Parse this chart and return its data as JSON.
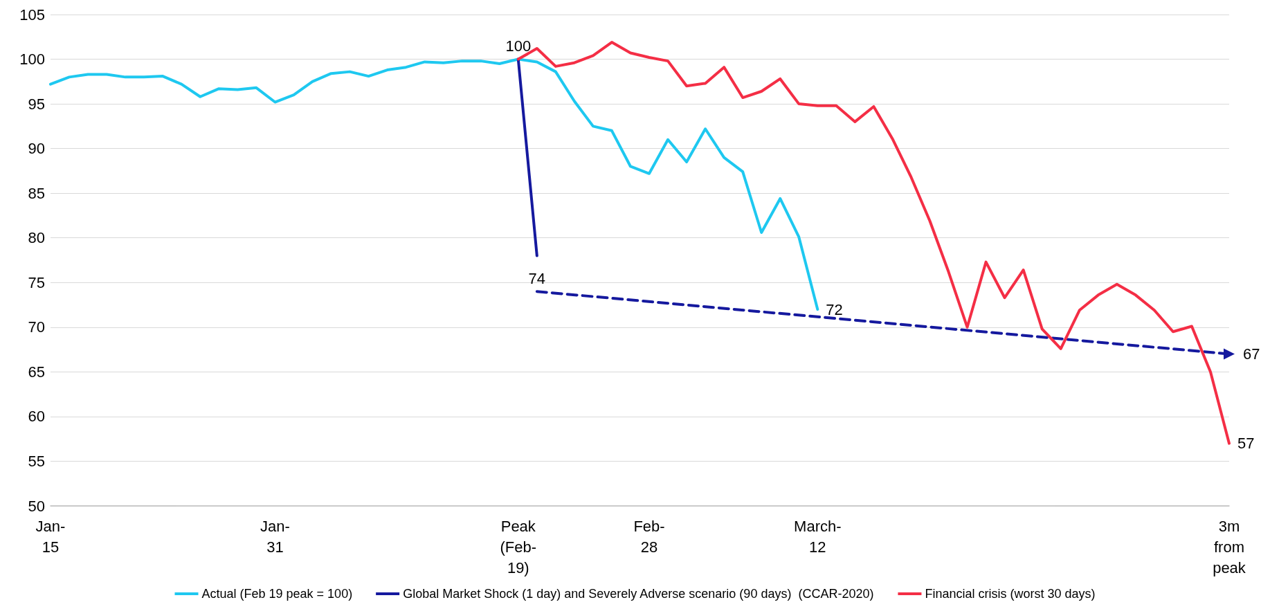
{
  "chart_data": {
    "type": "line",
    "categories": [
      "Jan-15",
      null,
      null,
      null,
      null,
      null,
      null,
      null,
      null,
      null,
      null,
      null,
      "Jan-31",
      null,
      null,
      null,
      null,
      null,
      null,
      null,
      null,
      null,
      null,
      null,
      null,
      "Peak (Feb-19)",
      null,
      null,
      null,
      null,
      null,
      null,
      "Feb-28",
      null,
      null,
      null,
      null,
      null,
      null,
      null,
      null,
      "March-12",
      null,
      null,
      null,
      null,
      null,
      null,
      null,
      null,
      null,
      null,
      null,
      null,
      null,
      null,
      null,
      null,
      null,
      null,
      null,
      null,
      null,
      "3m from peak"
    ],
    "series": [
      {
        "name": "Actual (Feb 19 peak = 100)",
        "color": "#1ec8f0",
        "values": [
          97.2,
          98.0,
          98.3,
          98.3,
          98.0,
          98.0,
          98.1,
          97.2,
          95.8,
          96.7,
          96.6,
          96.8,
          95.2,
          96.0,
          97.5,
          98.4,
          98.6,
          98.1,
          98.8,
          99.1,
          99.7,
          99.6,
          99.8,
          99.8,
          99.5,
          100,
          99.7,
          98.6,
          95.3,
          92.5,
          92.0,
          88.0,
          87.2,
          91.0,
          88.5,
          92.2,
          89.0,
          87.4,
          80.6,
          84.4,
          80.1,
          72,
          null,
          null,
          null,
          null,
          null,
          null,
          null,
          null,
          null,
          null,
          null,
          null,
          null,
          null,
          null,
          null,
          null,
          null,
          null,
          null,
          null,
          null
        ],
        "value_labels": [
          null,
          null,
          null,
          null,
          null,
          null,
          null,
          null,
          null,
          null,
          null,
          null,
          null,
          null,
          null,
          null,
          null,
          null,
          null,
          null,
          null,
          null,
          null,
          null,
          null,
          "100",
          null,
          null,
          null,
          null,
          null,
          null,
          null,
          null,
          null,
          null,
          null,
          null,
          null,
          null,
          null,
          "72",
          null,
          null,
          null,
          null,
          null,
          null,
          null,
          null,
          null,
          null,
          null,
          null,
          null,
          null,
          null,
          null,
          null,
          null,
          null,
          null,
          null,
          null
        ]
      },
      {
        "name": "Global Market Shock (1 day) and Severely Adverse scenario (90 days)  (CCAR-2020)",
        "color": "#15199e",
        "values": [
          null,
          null,
          null,
          null,
          null,
          null,
          null,
          null,
          null,
          null,
          null,
          null,
          null,
          null,
          null,
          null,
          null,
          null,
          null,
          null,
          null,
          null,
          null,
          null,
          null,
          100,
          78,
          null,
          null,
          null,
          null,
          null,
          null,
          null,
          null,
          null,
          null,
          null,
          null,
          null,
          null,
          null,
          null,
          null,
          null,
          null,
          null,
          null,
          null,
          null,
          null,
          null,
          null,
          null,
          null,
          null,
          null,
          null,
          null,
          null,
          null,
          null,
          null,
          null
        ]
      },
      {
        "color": "#15199e",
        "line_style": "dashed",
        "marker": "triangle",
        "values": [
          null,
          null,
          null,
          null,
          null,
          null,
          null,
          null,
          null,
          null,
          null,
          null,
          null,
          null,
          null,
          null,
          null,
          null,
          null,
          null,
          null,
          null,
          null,
          null,
          null,
          null,
          74,
          null,
          null,
          null,
          null,
          null,
          null,
          null,
          null,
          null,
          null,
          null,
          null,
          null,
          null,
          null,
          null,
          null,
          null,
          null,
          null,
          null,
          null,
          null,
          null,
          null,
          null,
          null,
          null,
          null,
          null,
          null,
          null,
          null,
          null,
          null,
          null,
          67
        ],
        "value_labels": [
          null,
          null,
          null,
          null,
          null,
          null,
          null,
          null,
          null,
          null,
          null,
          null,
          null,
          null,
          null,
          null,
          null,
          null,
          null,
          null,
          null,
          null,
          null,
          null,
          null,
          null,
          "74",
          null,
          null,
          null,
          null,
          null,
          null,
          null,
          null,
          null,
          null,
          null,
          null,
          null,
          null,
          null,
          null,
          null,
          null,
          null,
          null,
          null,
          null,
          null,
          null,
          null,
          null,
          null,
          null,
          null,
          null,
          null,
          null,
          null,
          null,
          null,
          null,
          "67"
        ]
      },
      {
        "name": "Financial crisis (worst 30 days)",
        "color": "#f42e45",
        "values": [
          null,
          null,
          null,
          null,
          null,
          null,
          null,
          null,
          null,
          null,
          null,
          null,
          null,
          null,
          null,
          null,
          null,
          null,
          null,
          null,
          null,
          null,
          null,
          null,
          null,
          100,
          101.2,
          99.2,
          99.6,
          100.4,
          101.9,
          100.7,
          100.2,
          99.8,
          97.0,
          97.3,
          99.1,
          95.7,
          96.4,
          97.8,
          95.0,
          94.8,
          94.8,
          93.0,
          94.7,
          91.1,
          86.8,
          81.9,
          76.2,
          70.0,
          77.3,
          73.3,
          76.4,
          69.8,
          67.6,
          71.9,
          73.6,
          74.8,
          73.6,
          71.9,
          69.5,
          70.1,
          65.0,
          57
        ],
        "value_labels": [
          null,
          null,
          null,
          null,
          null,
          null,
          null,
          null,
          null,
          null,
          null,
          null,
          null,
          null,
          null,
          null,
          null,
          null,
          null,
          null,
          null,
          null,
          null,
          null,
          null,
          null,
          null,
          null,
          null,
          null,
          null,
          null,
          null,
          null,
          null,
          null,
          null,
          null,
          null,
          null,
          null,
          null,
          null,
          null,
          null,
          null,
          null,
          null,
          null,
          null,
          null,
          null,
          null,
          null,
          null,
          null,
          null,
          null,
          null,
          null,
          null,
          null,
          null,
          "57"
        ]
      }
    ],
    "ylim": [
      50,
      105
    ],
    "yticks": [
      50,
      55,
      60,
      65,
      70,
      75,
      80,
      85,
      90,
      95,
      100,
      105
    ],
    "grid": "y",
    "legend": "bottom",
    "line_style": "solid",
    "marker": "none"
  }
}
